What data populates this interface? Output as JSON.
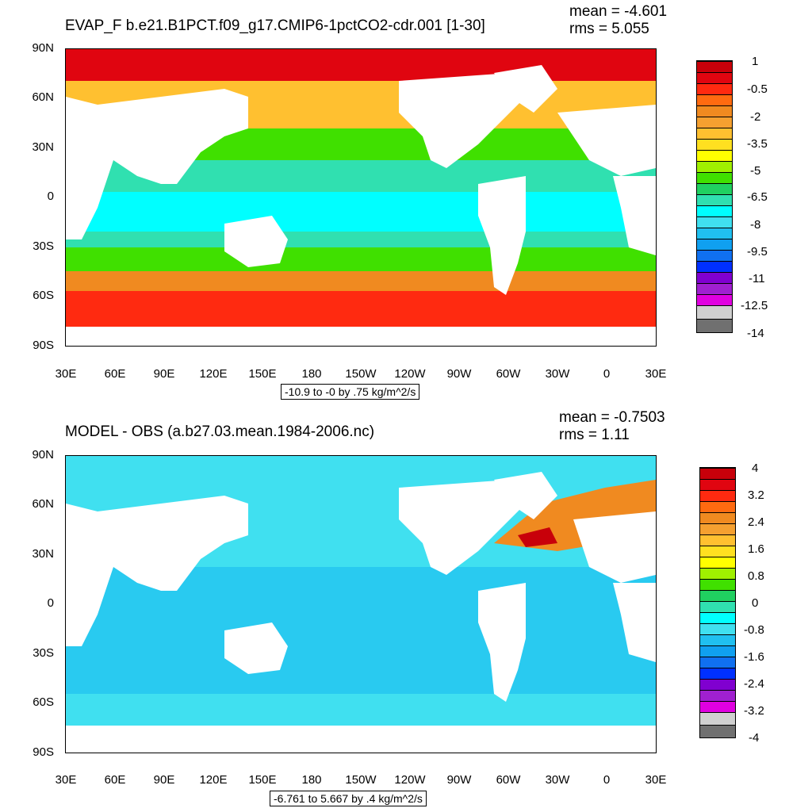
{
  "panels": [
    {
      "title": "EVAP_F b.e21.B1PCT.f09_g17.CMIP6-1pctCO2-cdr.001 [1-30]",
      "mean": "mean = -4.601",
      "rms": "rms = 5.055",
      "info": "-10.9 to -0 by .75 kg/m^2/s",
      "colorbar_labels": [
        "1",
        "-0.5",
        "-2",
        "-3.5",
        "-5",
        "-6.5",
        "-8",
        "-9.5",
        "-11",
        "-12.5",
        "-14"
      ],
      "colorbar_colors": [
        "#c8000a",
        "#e00510",
        "#ff2a10",
        "#ff6a10",
        "#f08a20",
        "#f5a030",
        "#ffc030",
        "#ffe020",
        "#ffff00",
        "#a0f000",
        "#40e000",
        "#20d060",
        "#30e0b0",
        "#00ffff",
        "#40e0f0",
        "#20c0f0",
        "#10a0f0",
        "#1070f0",
        "#0030ff",
        "#8000d0",
        "#a020d0",
        "#e000e0",
        "#d0d0d0",
        "#707070"
      ],
      "fields": {
        "tropics": "#30e0b0",
        "subtropics": "#40e000",
        "midlat": "#ffc030",
        "highlat_south": "#f08a20",
        "polar": "#ff2a10",
        "arctic": "#e00510",
        "warmpool": "#00ffff"
      }
    },
    {
      "title": "MODEL - OBS (a.b27.03.mean.1984-2006.nc)",
      "mean": "mean = -0.7503",
      "rms": "rms = 1.11",
      "info": "-6.761 to 5.667 by .4 kg/m^2/s",
      "colorbar_labels": [
        "4",
        "3.2",
        "2.4",
        "1.6",
        "0.8",
        "0",
        "-0.8",
        "-1.6",
        "-2.4",
        "-3.2",
        "-4"
      ],
      "colorbar_colors": [
        "#c8000a",
        "#e00510",
        "#ff2a10",
        "#ff6a10",
        "#f08a20",
        "#f5a030",
        "#ffc030",
        "#ffe020",
        "#ffff00",
        "#a0f000",
        "#40e000",
        "#20d060",
        "#30e0b0",
        "#00ffff",
        "#40e0f0",
        "#20c0f0",
        "#10a0f0",
        "#1070f0",
        "#0030ff",
        "#8000d0",
        "#a020d0",
        "#e000e0",
        "#d0d0d0",
        "#707070"
      ],
      "fields": {
        "base": "#40e0f0",
        "neg": "#20c0f0",
        "pos_na": "#f08a20",
        "pos_strong": "#c8000a"
      }
    }
  ],
  "lat_labels": [
    "90N",
    "60N",
    "30N",
    "0",
    "30S",
    "60S",
    "90S"
  ],
  "lon_labels": [
    "30E",
    "60E",
    "90E",
    "120E",
    "150E",
    "180",
    "150W",
    "120W",
    "90W",
    "60W",
    "30W",
    "0",
    "30E"
  ]
}
